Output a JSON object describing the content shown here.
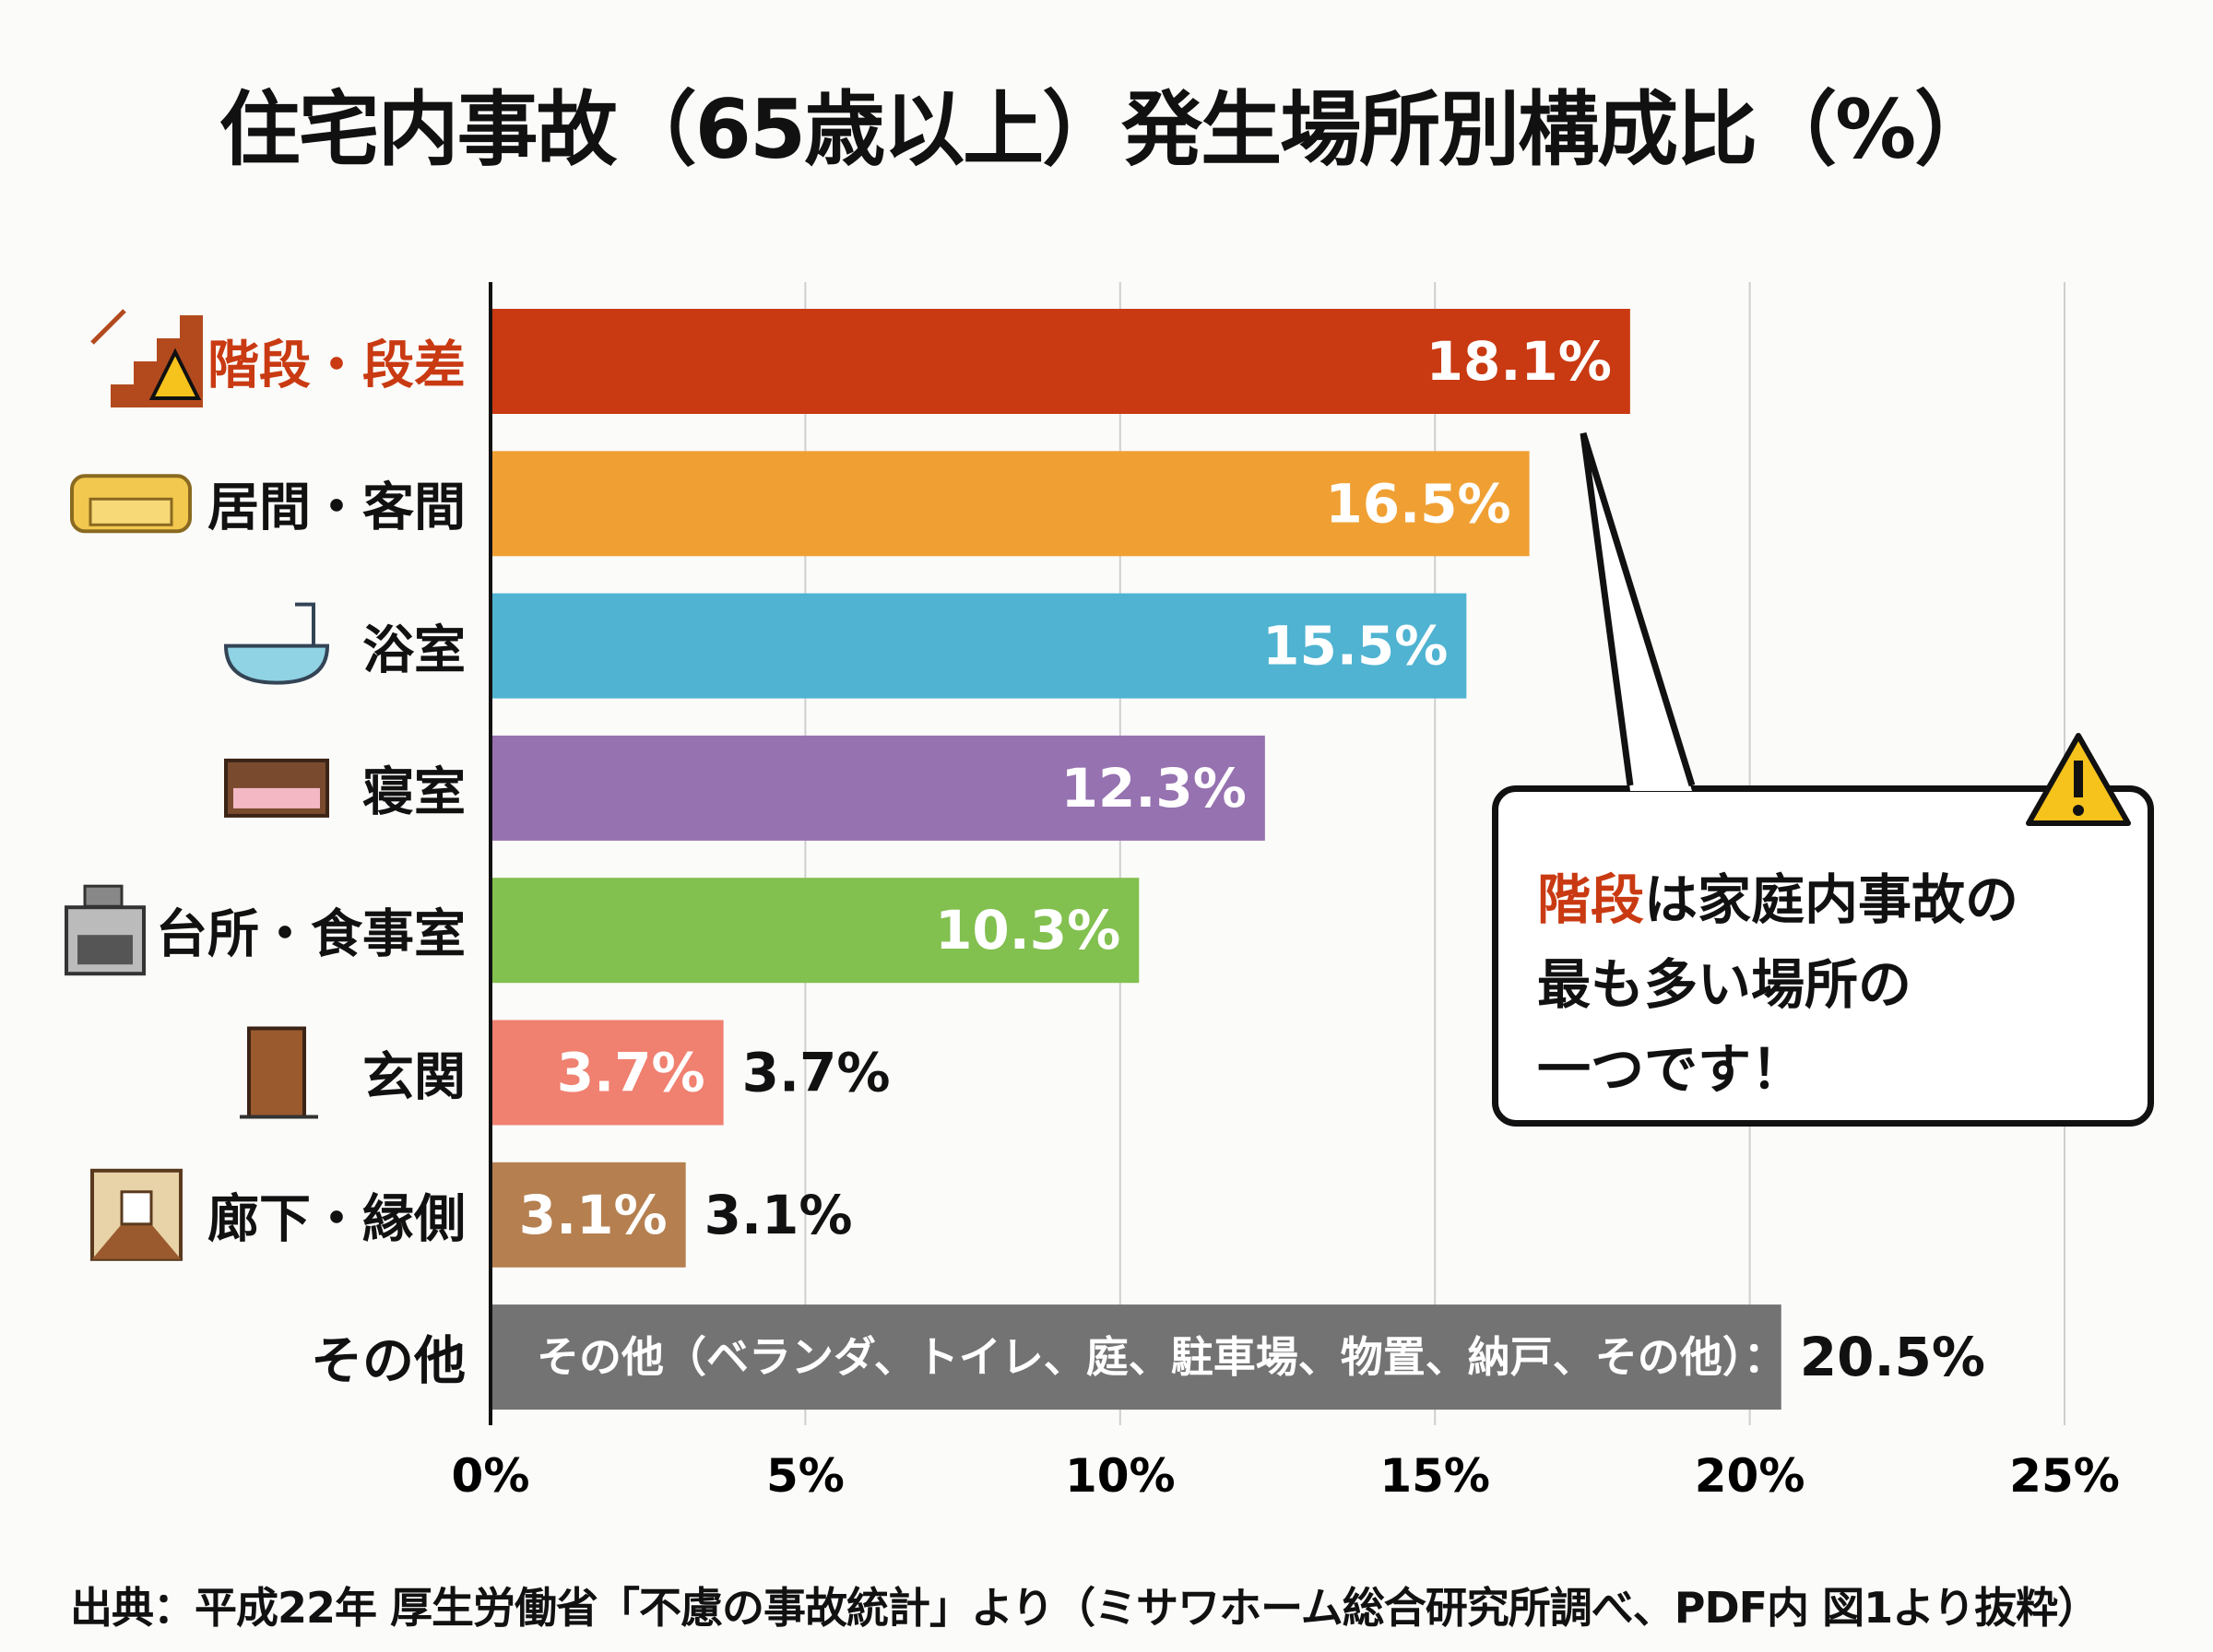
{
  "chart_data": {
    "type": "bar",
    "orientation": "horizontal",
    "title": "住宅内事故（65歳以上）発生場所別構成比（%）",
    "categories": [
      "階段・段差",
      "居間・客間",
      "浴室",
      "寝室",
      "台所・食事室",
      "玄関",
      "廊下・縁側",
      "その他"
    ],
    "values": [
      18.1,
      16.5,
      15.5,
      12.3,
      10.3,
      3.7,
      3.1,
      20.5
    ],
    "value_labels": [
      "18.1%",
      "16.5%",
      "15.5%",
      "12.3%",
      "10.3%",
      "3.7%",
      "3.1%",
      "20.5%"
    ],
    "colors": [
      "#c93a12",
      "#f0a033",
      "#4fb3d1",
      "#9672b0",
      "#82c04f",
      "#f08070",
      "#b57f4f",
      "#737373"
    ],
    "other_bar_text": "その他（ベランダ、トイレ、庭、駐車場、物置、納戸、その他）：",
    "xlim": [
      0,
      25
    ],
    "xticks": [
      "0%",
      "5%",
      "10%",
      "15%",
      "20%",
      "25%"
    ],
    "xtick_values": [
      0,
      5,
      10,
      15,
      20,
      25
    ],
    "grid": true,
    "icons": [
      "stairs-warning-icon",
      "sofa-icon",
      "bathtub-icon",
      "bed-icon",
      "stove-icon",
      "door-icon",
      "hallway-icon",
      ""
    ]
  },
  "callout": {
    "highlight": "階段",
    "line1_rest": "は家庭内事故の",
    "line2": "最も多い場所の",
    "line3": "一つです！",
    "highlight_color": "#c93a12"
  },
  "source": "出典：平成22年 厚生労働省「不慮の事故統計」より（ミサワホーム総合研究所調べ、PDF内 図1より抜粋）"
}
